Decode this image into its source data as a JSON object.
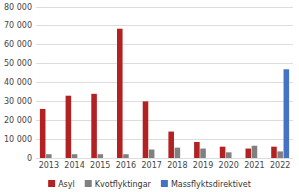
{
  "chart_data": {
    "type": "bar",
    "categories": [
      "2013",
      "2014",
      "2015",
      "2016",
      "2017",
      "2018",
      "2019",
      "2020",
      "2021",
      "2022"
    ],
    "series": [
      {
        "name": "Asyl",
        "color": "#b22222",
        "values": [
          26000,
          33000,
          34000,
          68500,
          30000,
          14000,
          8500,
          6000,
          5000,
          6000
        ]
      },
      {
        "name": "Kvotflyktingar",
        "color": "#808080",
        "values": [
          2000,
          2000,
          2000,
          2000,
          4500,
          5500,
          5000,
          3000,
          6500,
          3500
        ]
      },
      {
        "name": "Massflyktsdirektivet",
        "color": "#4472c4",
        "values": [
          0,
          0,
          0,
          0,
          0,
          0,
          0,
          0,
          0,
          47000
        ]
      }
    ],
    "ylim": [
      0,
      80000
    ],
    "yticks": [
      0,
      {
        "value": 10000,
        "label": "10 000"
      },
      {
        "value": 20000,
        "label": "20 000"
      },
      {
        "value": 30000,
        "label": "30 000"
      },
      {
        "value": 40000,
        "label": "40 000"
      },
      {
        "value": 50000,
        "label": "50 000"
      },
      {
        "value": 60000,
        "label": "60 000"
      },
      {
        "value": 70000,
        "label": "70 000"
      },
      {
        "value": 80000,
        "label": "80 000"
      }
    ],
    "grid": true,
    "legend": "bottom"
  }
}
